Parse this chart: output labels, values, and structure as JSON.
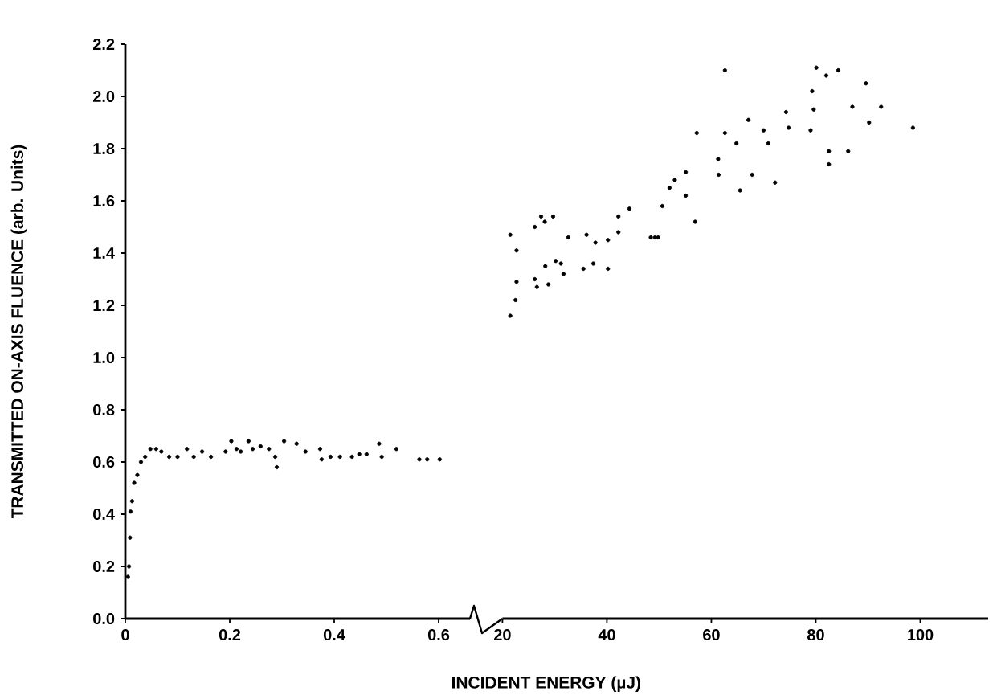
{
  "chart_data": [
    {
      "type": "scatter",
      "ylabel": "TRANSMITTED ON-AXIS FLUENCE (arb. Units)",
      "marker": "circle",
      "color": "#000000",
      "x": [
        0.005,
        0.007,
        0.009,
        0.01,
        0.013,
        0.017,
        0.023,
        0.03,
        0.038,
        0.048,
        0.059,
        0.069,
        0.084,
        0.1,
        0.118,
        0.131,
        0.147,
        0.164,
        0.192,
        0.203,
        0.213,
        0.221,
        0.236,
        0.244,
        0.259,
        0.275,
        0.287,
        0.29,
        0.304,
        0.328,
        0.345,
        0.373,
        0.376,
        0.393,
        0.411,
        0.434,
        0.448,
        0.462,
        0.486,
        0.491,
        0.519,
        0.563,
        0.578,
        0.602
      ],
      "values": [
        0.16,
        0.2,
        0.31,
        0.41,
        0.45,
        0.52,
        0.55,
        0.6,
        0.62,
        0.65,
        0.65,
        0.64,
        0.62,
        0.62,
        0.65,
        0.62,
        0.64,
        0.62,
        0.64,
        0.68,
        0.65,
        0.64,
        0.68,
        0.65,
        0.66,
        0.65,
        0.62,
        0.58,
        0.68,
        0.67,
        0.64,
        0.65,
        0.61,
        0.62,
        0.62,
        0.62,
        0.63,
        0.63,
        0.67,
        0.62,
        0.65,
        0.61,
        0.61,
        0.61
      ],
      "xlim": [
        0,
        0.66
      ],
      "xticks": [
        0,
        0.2,
        0.4,
        0.6
      ],
      "ylim": [
        0,
        2.2
      ],
      "yticks": [
        {
          "value": 0,
          "label": "0.0"
        },
        {
          "value": 0.2,
          "label": "0.2"
        },
        {
          "value": 0.4,
          "label": "0.4"
        },
        {
          "value": 0.6,
          "label": "0.6"
        },
        {
          "value": 0.8,
          "label": "0.8"
        },
        {
          "value": 1.0,
          "label": "1.0"
        },
        {
          "value": 1.2,
          "label": "1.2"
        },
        {
          "value": 1.4,
          "label": "1.4"
        },
        {
          "value": 1.6,
          "label": "1.6"
        },
        {
          "value": 1.8,
          "label": "1.8"
        },
        {
          "value": 2.0,
          "label": "2.0"
        },
        {
          "value": 2.2,
          "label": "2.2"
        }
      ]
    },
    {
      "type": "scatter",
      "xlabel": "INCIDENT ENERGY (µJ)",
      "marker": "circle",
      "color": "#000000",
      "x": [
        21.5,
        22.7,
        22.7,
        22.5,
        21.5,
        26.2,
        27.4,
        28.1,
        29.7,
        26.2,
        26.6,
        28.2,
        28.8,
        30.2,
        31.2,
        31.7,
        32.6,
        35.5,
        36.1,
        37.4,
        37.8,
        40.2,
        40.2,
        42.2,
        42.2,
        44.3,
        48.4,
        49.2,
        49.8,
        50.6,
        52.0,
        53.0,
        55.1,
        55.1,
        56.9,
        57.2,
        61.3,
        61.4,
        62.6,
        62.6,
        64.8,
        65.5,
        67.1,
        67.8,
        70.0,
        70.9,
        72.2,
        74.3,
        74.8,
        79.0,
        79.3,
        79.6,
        80.1,
        82.0,
        82.5,
        82.5,
        84.3,
        86.2,
        87.0,
        89.6,
        90.2,
        92.5,
        98.6
      ],
      "values": [
        1.47,
        1.41,
        1.29,
        1.22,
        1.16,
        1.5,
        1.54,
        1.52,
        1.54,
        1.3,
        1.27,
        1.35,
        1.28,
        1.37,
        1.36,
        1.32,
        1.46,
        1.34,
        1.47,
        1.36,
        1.44,
        1.34,
        1.45,
        1.54,
        1.48,
        1.57,
        1.46,
        1.46,
        1.46,
        1.58,
        1.65,
        1.68,
        1.71,
        1.62,
        1.52,
        1.86,
        1.76,
        1.7,
        2.1,
        1.86,
        1.82,
        1.64,
        1.91,
        1.7,
        1.87,
        1.82,
        1.67,
        1.94,
        1.88,
        1.87,
        2.02,
        1.95,
        2.11,
        2.08,
        1.79,
        1.74,
        2.1,
        1.79,
        1.96,
        2.05,
        1.9,
        1.96,
        1.88
      ],
      "xlim": [
        20,
        113
      ],
      "xticks": [
        20,
        40,
        60,
        80,
        100
      ],
      "ylim": [
        0,
        2.2
      ],
      "tick_labels": "x"
    }
  ]
}
